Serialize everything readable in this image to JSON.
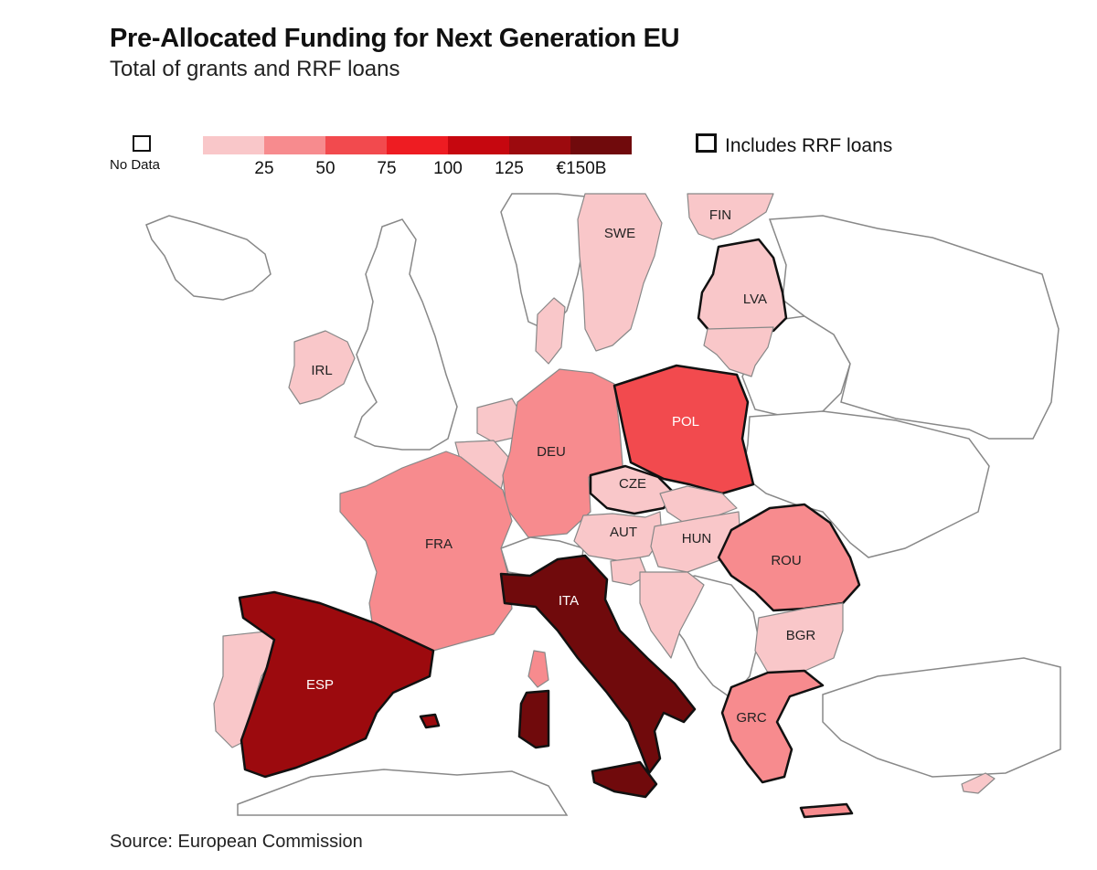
{
  "title": "Pre-Allocated Funding for Next Generation EU",
  "subtitle": "Total of grants and RRF loans",
  "legend": {
    "no_data_label": "No Data",
    "scale_colors": [
      "#f9c7c9",
      "#f78b8e",
      "#f24a4e",
      "#ee1c22",
      "#c6070f",
      "#9c0a0e",
      "#700a0c"
    ],
    "scale_ticks": [
      "25",
      "50",
      "75",
      "100",
      "125",
      "€150B"
    ],
    "rrf_label": "Includes RRF loans"
  },
  "colors": {
    "no_data": "#ffffff",
    "sea": "#ffffff",
    "border": "#888888",
    "rrf_border": "#111111"
  },
  "countries": [
    {
      "code": "SWE",
      "label": "SWE",
      "bucket": 0,
      "rrf": false
    },
    {
      "code": "FIN",
      "label": "FIN",
      "bucket": 0,
      "rrf": false
    },
    {
      "code": "LVA",
      "label": "LVA",
      "bucket": 0,
      "rrf": true
    },
    {
      "code": "IRL",
      "label": "IRL",
      "bucket": 0,
      "rrf": false
    },
    {
      "code": "DEU",
      "label": "DEU",
      "bucket": 1,
      "rrf": false
    },
    {
      "code": "POL",
      "label": "POL",
      "bucket": 2,
      "rrf": true
    },
    {
      "code": "CZE",
      "label": "CZE",
      "bucket": 0,
      "rrf": true
    },
    {
      "code": "AUT",
      "label": "AUT",
      "bucket": 0,
      "rrf": false
    },
    {
      "code": "HUN",
      "label": "HUN",
      "bucket": 0,
      "rrf": false
    },
    {
      "code": "FRA",
      "label": "FRA",
      "bucket": 1,
      "rrf": false
    },
    {
      "code": "ROU",
      "label": "ROU",
      "bucket": 1,
      "rrf": true
    },
    {
      "code": "ITA",
      "label": "ITA",
      "bucket": 6,
      "rrf": true
    },
    {
      "code": "BGR",
      "label": "BGR",
      "bucket": 0,
      "rrf": false
    },
    {
      "code": "ESP",
      "label": "ESP",
      "bucket": 5,
      "rrf": true
    },
    {
      "code": "GRC",
      "label": "GRC",
      "bucket": 1,
      "rrf": true
    }
  ],
  "source": "Source: European Commission"
}
